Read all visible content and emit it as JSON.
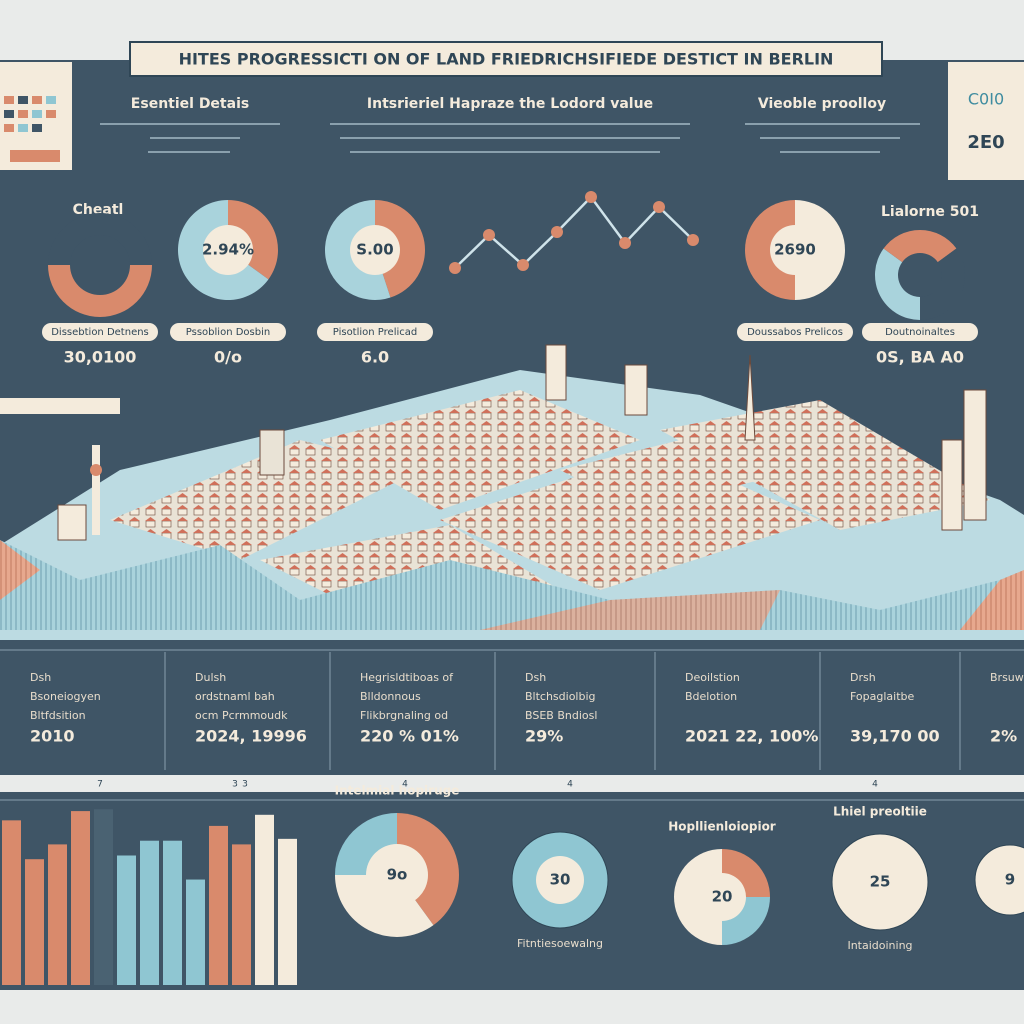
{
  "header": {
    "title": "HITES PROGRESSICTI ON OF LAND FRIEDRICHSIFIEDE DESTICT IN BERLIN"
  },
  "corner_card": {
    "lines": [
      "C0I0",
      "2E0"
    ]
  },
  "top": {
    "headings": [
      "Esentiel Detais",
      "Intsrieriel Hapraze the Lodord value",
      "Vieoble proolloy"
    ],
    "labels": [
      "Cheatl",
      "Lialorne 501"
    ],
    "charts": [
      {
        "type": "donut",
        "values": [
          50,
          50
        ],
        "colors": [
          "#d98a6c",
          "#3f5566"
        ],
        "caption": "Dissebtion Detnens",
        "footer": "30,0100"
      },
      {
        "type": "pie",
        "center_label": "2.94%",
        "values": [
          35,
          65
        ],
        "colors": [
          "#d98a6c",
          "#a9d3dc"
        ],
        "caption": "Pssoblion Dosbin",
        "footer": "0/o"
      },
      {
        "type": "pie",
        "center_label": "S.00",
        "values": [
          45,
          55
        ],
        "colors": [
          "#d98a6c",
          "#a9d3dc"
        ],
        "caption": "Pisotlion Prelicad",
        "footer": "6.0"
      },
      {
        "type": "pie",
        "center_label": "2690",
        "values": [
          50,
          50
        ],
        "colors": [
          "#f4ebdc",
          "#d98a6c"
        ],
        "caption": "Doussabos Prelicos"
      },
      {
        "type": "donut",
        "values": [
          35,
          30,
          35
        ],
        "colors": [
          "#a9d3dc",
          "#d98a6c",
          "#3f5566"
        ],
        "caption": "Doutnoinaltes",
        "footer": "0S, BA A0"
      }
    ],
    "line": {
      "type": "line",
      "values": [
        32,
        65,
        35,
        68,
        103,
        57,
        93,
        60
      ],
      "color": "#d98a6c"
    }
  },
  "stats": [
    {
      "lines": [
        "Dsh",
        "Bsoneiogyen",
        "Bltfdsition"
      ],
      "value": "2010"
    },
    {
      "lines": [
        "Dulsh",
        "ordstnaml bah",
        "ocm Pcrmmoudk"
      ],
      "value": "2024, 19996"
    },
    {
      "lines": [
        "Hegrisldtiboas of",
        "Blldonnous",
        "Flikbrgnaling od"
      ],
      "value": "220 % 01%"
    },
    {
      "lines": [
        "Dsh",
        "Bltchsdiolbig",
        "BSEB Bndiosl"
      ],
      "value": "29%"
    },
    {
      "lines": [
        "Deoilstion",
        "Bdelotion"
      ],
      "value": "2021 22, 100%"
    },
    {
      "lines": [
        "Drsh",
        "Fopaglaitbe"
      ],
      "value": "39,170 00"
    },
    {
      "lines": [
        "Brsuw"
      ],
      "value": "2%"
    }
  ],
  "axis_strip": [
    "7",
    "3",
    "3",
    "4",
    "4",
    "4"
  ],
  "bottom": {
    "bars": {
      "type": "bar",
      "values": [
        89,
        68,
        76,
        94,
        95,
        70,
        78,
        78,
        57,
        86,
        76,
        92,
        79
      ],
      "colors": [
        "#d98a6c",
        "#d98a6c",
        "#d98a6c",
        "#d98a6c",
        "#4a6272",
        "#8fc6d2",
        "#8fc6d2",
        "#8fc6d2",
        "#8fc6d2",
        "#d98a6c",
        "#d98a6c",
        "#f4ebdc",
        "#f4ebdc"
      ]
    },
    "pies": [
      {
        "type": "pie",
        "heading": "Intelmial hopiruge",
        "center_label": "9o",
        "values": [
          40,
          35,
          25
        ],
        "colors": [
          "#d98a6c",
          "#f4ebdc",
          "#8fc6d2"
        ]
      },
      {
        "type": "pie",
        "center_label": "30",
        "caption": "Fitntiesoewalng",
        "values": [
          100
        ],
        "colors": [
          "#8fc6d2"
        ]
      },
      {
        "type": "pie",
        "heading": "Hopllienloiopior",
        "center_label": "20",
        "values": [
          25,
          25,
          50
        ],
        "colors": [
          "#d98a6c",
          "#8fc6d2",
          "#f4ebdc"
        ]
      },
      {
        "type": "pie",
        "heading": "Lhiel preoltiie",
        "center_label": "25",
        "caption": "Intaidoining",
        "values": [
          100
        ],
        "colors": [
          "#f4ebdc"
        ]
      },
      {
        "type": "pie",
        "center_label": "9",
        "values": [
          100
        ],
        "colors": [
          "#f4ebdc"
        ]
      }
    ]
  }
}
